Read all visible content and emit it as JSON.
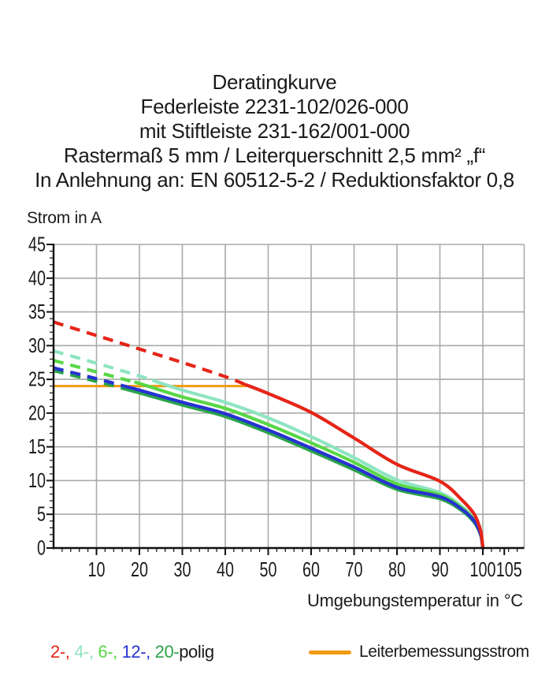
{
  "title_lines": [
    "Deratingkurve",
    "Federleiste 2231-102/026-000",
    "mit Stiftleiste 231-162/001-000",
    "Rastermaß 5 mm / Leiterquerschnitt 2,5 mm² „f“",
    "In Anlehnung an: EN 60512-5-2 / Reduktionsfaktor 0,8"
  ],
  "axis_labels": {
    "y": "Strom in A",
    "x": "Umgebungstemperatur in °C"
  },
  "legend": {
    "pole_tokens": [
      {
        "label": "2-,",
        "color": "#e62417"
      },
      {
        "label": "4-,",
        "color": "#8fe4c2"
      },
      {
        "label": "6-,",
        "color": "#58d747"
      },
      {
        "label": "12-,",
        "color": "#2633d0"
      },
      {
        "label": "20-",
        "color": "#2aa449"
      }
    ],
    "pole_suffix": "polig",
    "rated_line_label": "Leiterbemessungsstrom",
    "rated_line_color": "#f29b12"
  },
  "chart_data": {
    "type": "line",
    "title": "Deratingkurve",
    "xlabel": "Umgebungstemperatur in °C",
    "ylabel": "Strom in A",
    "xlim": [
      0,
      110
    ],
    "ylim": [
      0,
      45
    ],
    "grid": true,
    "grid_color": "#a7aca7",
    "x_major_ticks": [
      10,
      20,
      30,
      40,
      50,
      60,
      70,
      80,
      90,
      100,
      105
    ],
    "y_major_ticks": [
      0,
      5,
      10,
      15,
      20,
      25,
      30,
      35,
      40,
      45
    ],
    "x": [
      0,
      10,
      20,
      30,
      40,
      50,
      60,
      70,
      80,
      90,
      95,
      98,
      99.5,
      100
    ],
    "series": [
      {
        "name": "4-polig",
        "color": "#8fe4c2",
        "dash_until": 23.3,
        "values": [
          29.2,
          27.4,
          25.5,
          23.4,
          21.6,
          19.3,
          16.5,
          13.4,
          10.1,
          8.2,
          6.2,
          4.3,
          2.2,
          0
        ]
      },
      {
        "name": "6-polig",
        "color": "#58d747",
        "dash_until": 19.6,
        "values": [
          27.8,
          26.1,
          24.4,
          22.4,
          20.7,
          18.3,
          15.6,
          12.7,
          9.5,
          7.9,
          6.0,
          4.1,
          2.1,
          0
        ]
      },
      {
        "name": "20-polig",
        "color": "#2aa449",
        "dash_until": 16.5,
        "values": [
          26.3,
          24.7,
          23.0,
          21.2,
          19.5,
          17.1,
          14.4,
          11.6,
          8.7,
          7.3,
          5.6,
          3.8,
          1.9,
          0
        ]
      },
      {
        "name": "12-polig",
        "color": "#2633d0",
        "dash_until": 16.9,
        "values": [
          26.7,
          25.1,
          23.4,
          21.6,
          19.9,
          17.5,
          14.8,
          12.0,
          9.0,
          7.6,
          5.8,
          4.0,
          2.0,
          0
        ]
      },
      {
        "name": "2-polig",
        "color": "#e62417",
        "dash_until": 44.8,
        "values": [
          33.5,
          31.5,
          29.5,
          27.5,
          25.4,
          22.9,
          20.1,
          16.3,
          12.4,
          9.9,
          7.2,
          5.0,
          2.5,
          0
        ]
      }
    ],
    "reference_line": {
      "label": "Leiterbemessungsstrom",
      "value": 24,
      "x_start": 0,
      "x_end": 45,
      "color": "#f29b12"
    },
    "legend_position": "bottom"
  }
}
